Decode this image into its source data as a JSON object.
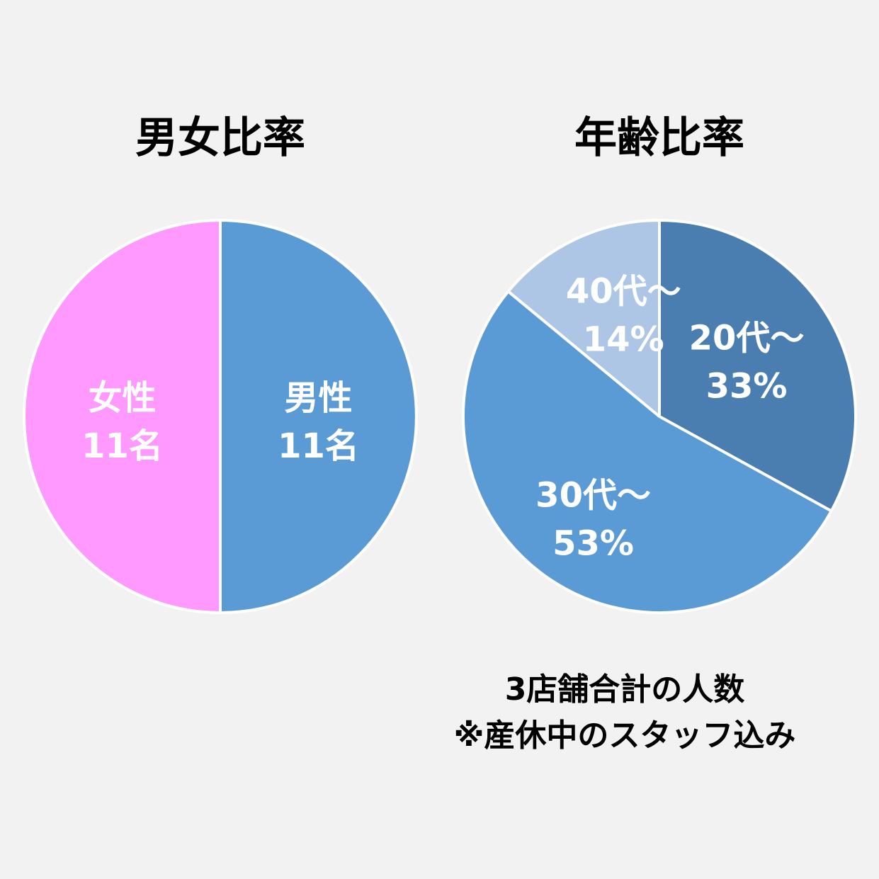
{
  "chart_data": [
    {
      "type": "pie",
      "title": "男女比率",
      "slices": [
        {
          "category": "男性",
          "value_label": "11名",
          "value": 11,
          "color": "#5b9bd5"
        },
        {
          "category": "女性",
          "value_label": "11名",
          "value": 11,
          "color": "#ff99ff"
        }
      ]
    },
    {
      "type": "pie",
      "title": "年齢比率",
      "slices": [
        {
          "category": "20代～",
          "value_label": "33%",
          "value": 33,
          "color": "#4a7eb0"
        },
        {
          "category": "30代～",
          "value_label": "53%",
          "value": 53,
          "color": "#5b9bd5"
        },
        {
          "category": "40代～",
          "value_label": "14%",
          "value": 14,
          "color": "#adc6e5"
        }
      ]
    }
  ],
  "note": {
    "line1": "3店舗合計の人数",
    "line2": "※産休中のスタッフ込み"
  },
  "colors": {
    "background": "#f2f2f2",
    "separator": "#ffffff",
    "label_text": "#ffffff",
    "title_text": "#000000"
  }
}
